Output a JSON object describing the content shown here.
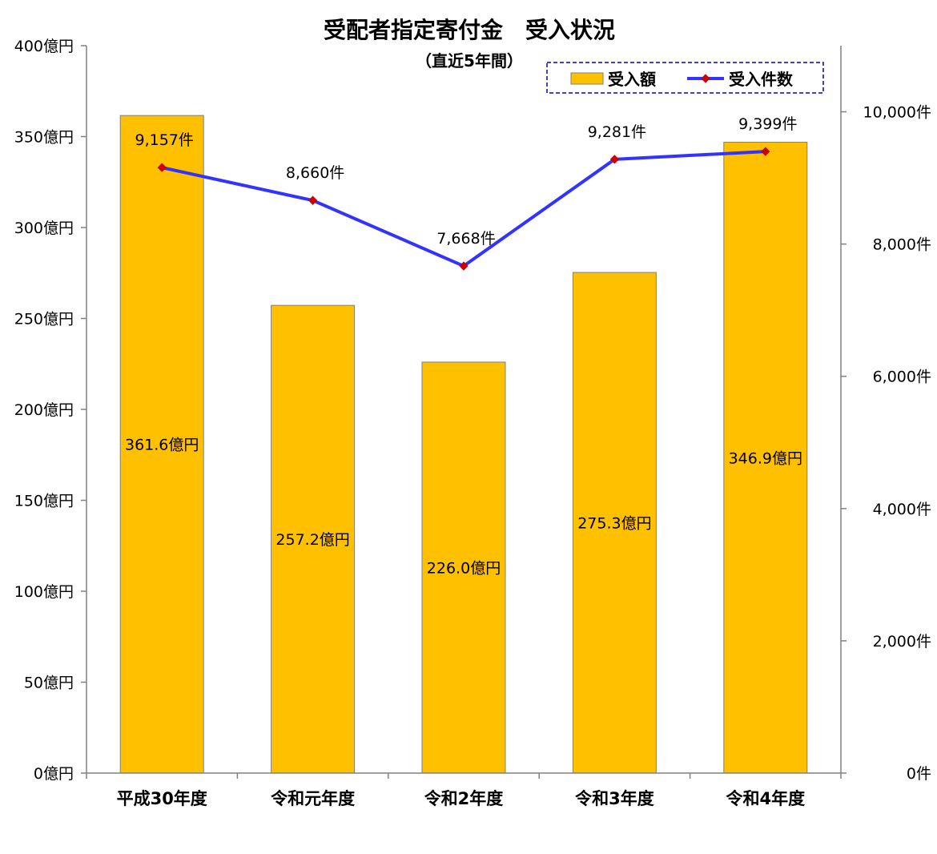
{
  "chart_data": {
    "type": "bar",
    "title": "受配者指定寄付金　受入状況",
    "subtitle": "（直近5年間）",
    "categories": [
      "平成30年度",
      "令和元年度",
      "令和2年度",
      "令和3年度",
      "令和4年度"
    ],
    "series": [
      {
        "name": "受入額",
        "type": "bar",
        "axis": "left",
        "color": "#FFC000",
        "values": [
          361.6,
          257.2,
          226.0,
          275.3,
          346.9
        ],
        "labels": [
          "361.6億円",
          "257.2億円",
          "226.0億円",
          "275.3億円",
          "346.9億円"
        ]
      },
      {
        "name": "受入件数",
        "type": "line",
        "axis": "right",
        "color": "#3333FF",
        "marker_color": "#CC0000",
        "values": [
          9157,
          8660,
          7668,
          9281,
          9399
        ],
        "labels": [
          "9,157件",
          "8,660件",
          "7,668件",
          "9,281件",
          "9,399件"
        ]
      }
    ],
    "y_left": {
      "min": 0,
      "max": 400,
      "ticks": [
        0,
        50,
        100,
        150,
        200,
        250,
        300,
        350,
        400
      ],
      "tick_labels": [
        "0億円",
        "50億円",
        "100億円",
        "150億円",
        "200億円",
        "250億円",
        "300億円",
        "350億円",
        "400億円"
      ]
    },
    "y_right": {
      "min": 0,
      "max": 11000,
      "ticks": [
        0,
        2000,
        4000,
        6000,
        8000,
        10000
      ],
      "tick_labels": [
        "0件",
        "2,000件",
        "4,000件",
        "6,000件",
        "8,000件",
        "10,000件"
      ]
    },
    "legend": {
      "placement": "top-right",
      "border_color": "#0000CC",
      "border_style": "dashed"
    },
    "grid": false
  }
}
